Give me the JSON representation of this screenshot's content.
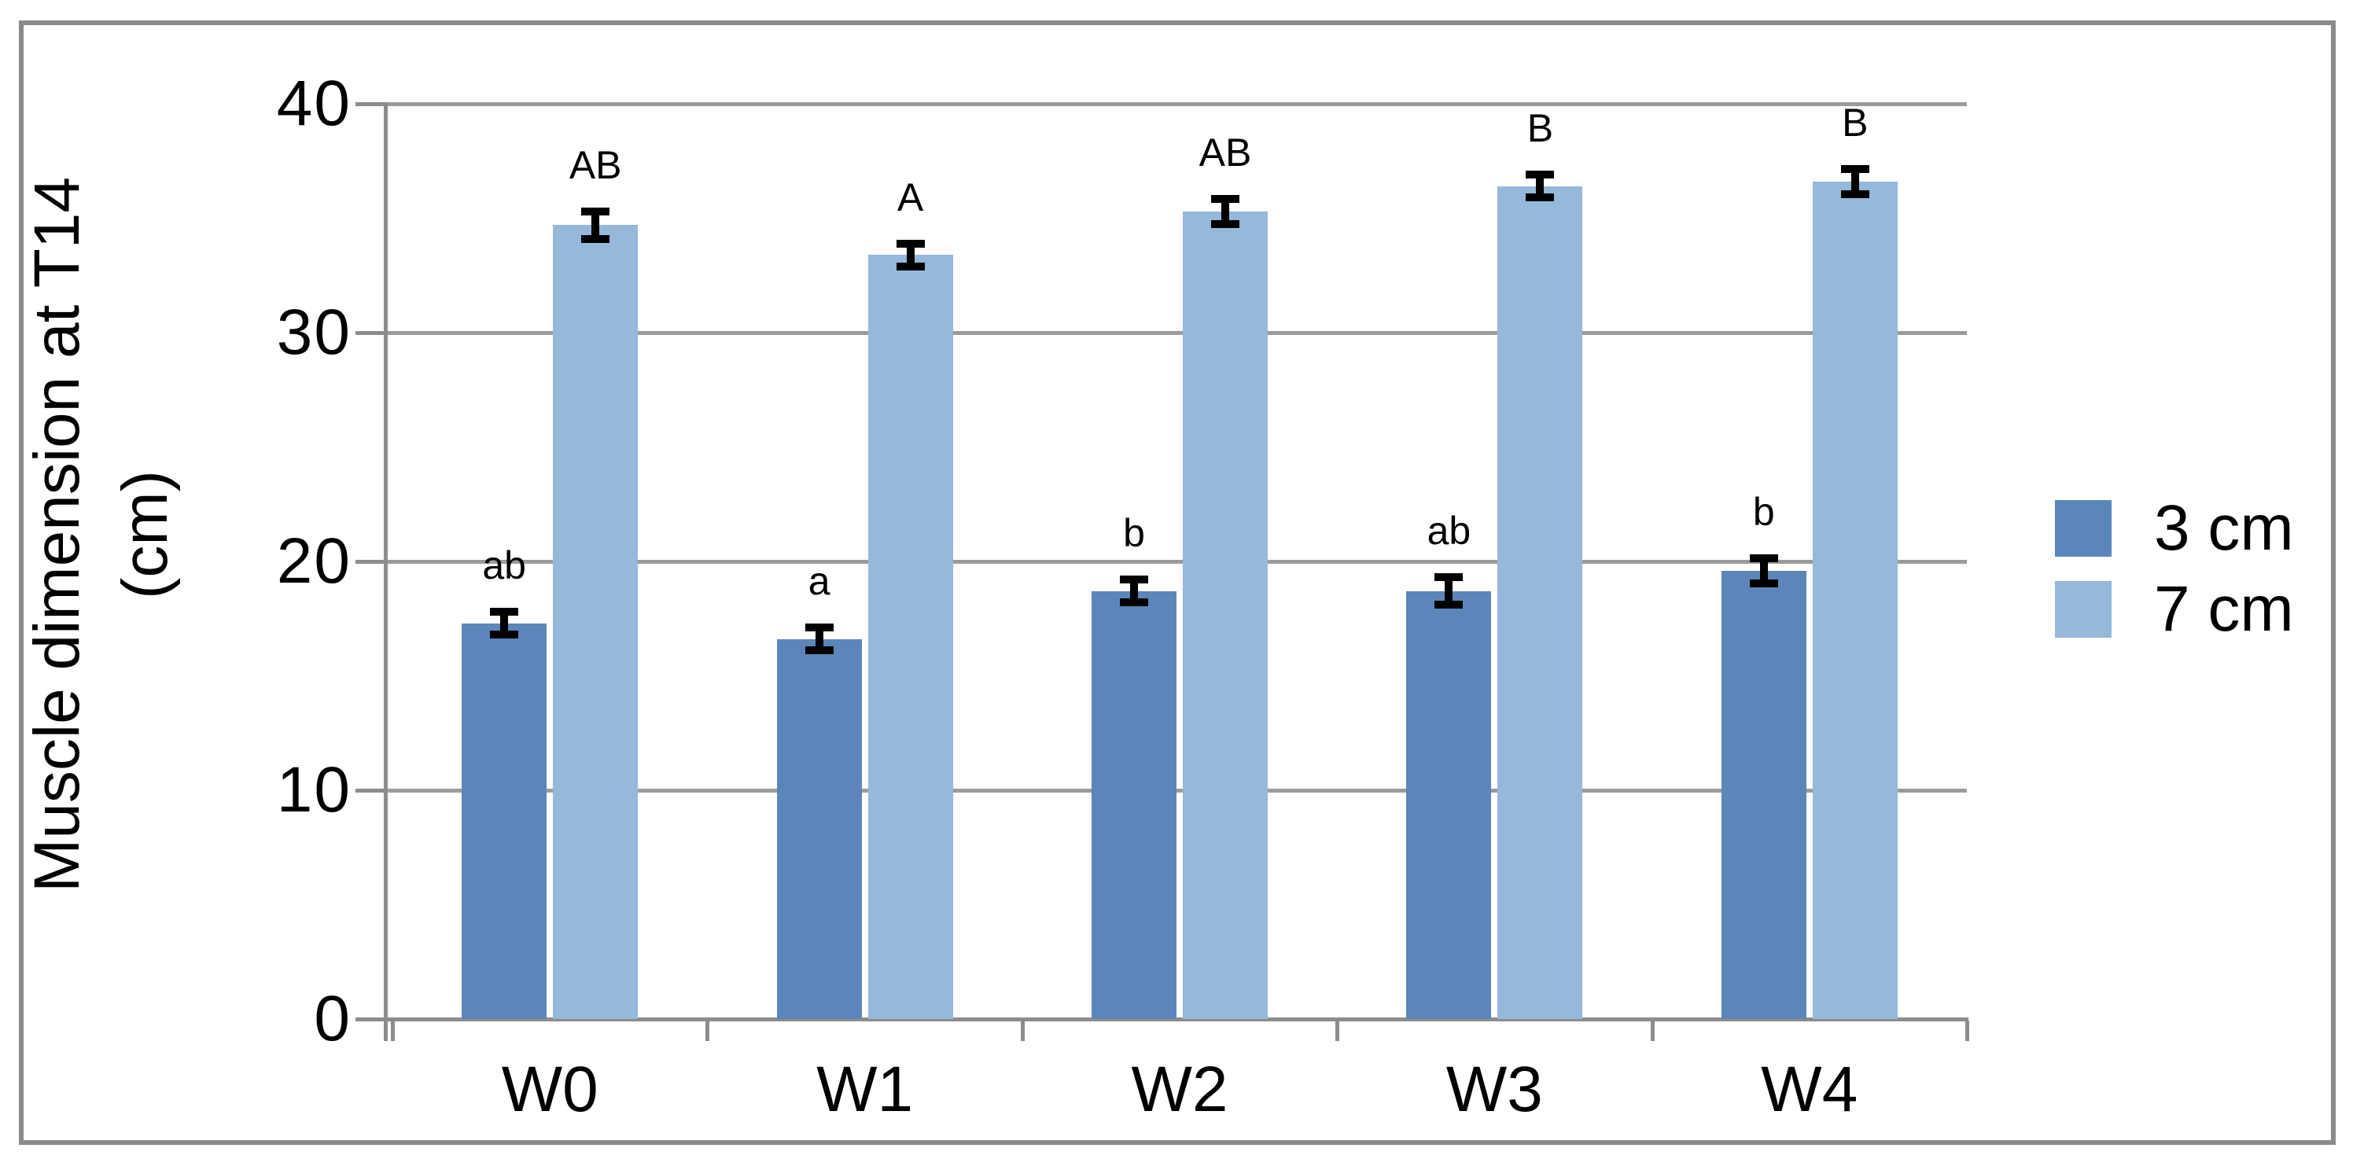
{
  "chart_data": {
    "type": "bar",
    "title": "",
    "y_axis_label_line1": "Muscle dimension at T14",
    "y_axis_label_line2": "(cm)",
    "xlabel": "",
    "categories": [
      "W0",
      "W1",
      "W2",
      "W3",
      "W4"
    ],
    "series": [
      {
        "name": "3 cm",
        "color": "#5c86b9",
        "values": [
          17.3,
          16.6,
          18.7,
          18.7,
          19.6
        ],
        "errors": [
          0.5,
          0.5,
          0.5,
          0.6,
          0.55
        ],
        "sig_letters": [
          "ab",
          "a",
          "b",
          "ab",
          "b"
        ]
      },
      {
        "name": "7 cm",
        "color": "#95b8db",
        "values": [
          34.7,
          33.4,
          35.3,
          36.4,
          36.6
        ],
        "errors": [
          0.6,
          0.5,
          0.55,
          0.5,
          0.55
        ],
        "sig_letters": [
          "AB",
          "A",
          "AB",
          "B",
          "B"
        ]
      }
    ],
    "y_ticks": [
      0,
      10,
      20,
      30,
      40
    ],
    "ylim": [
      0,
      40
    ],
    "grid": true,
    "error_bars": true,
    "legend_position": "inside-right"
  },
  "colors": {
    "grid": "#9b9b9b",
    "axis": "#8c8c8c",
    "frame_border": "#8a8a8a",
    "error_bar": "#000000",
    "text": "#000000",
    "background": "#ffffff"
  }
}
